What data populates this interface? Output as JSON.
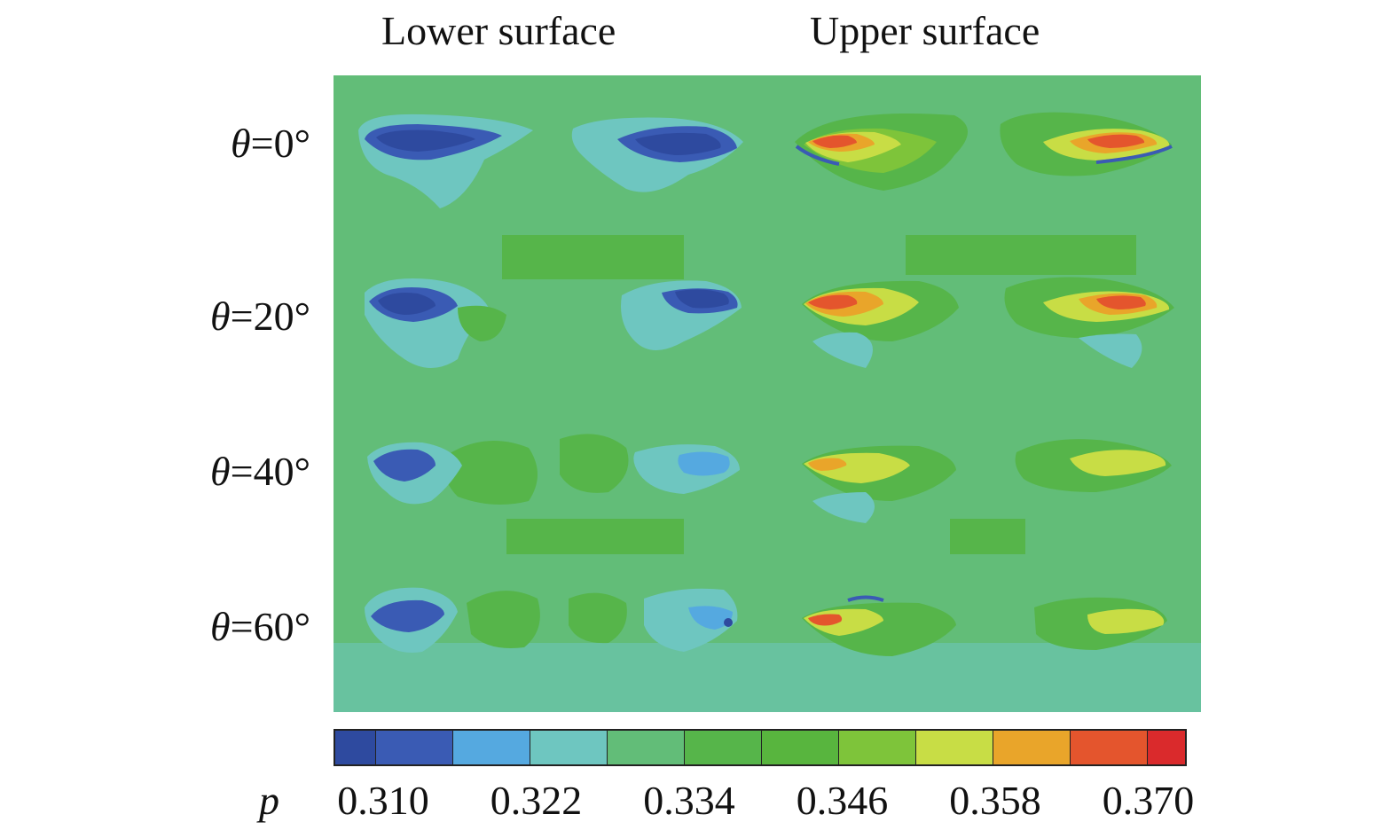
{
  "columns": [
    {
      "label": "Lower surface"
    },
    {
      "label": "Upper surface"
    }
  ],
  "rows": [
    {
      "symbol": "θ",
      "value": "=0°"
    },
    {
      "symbol": "θ",
      "value": "=20°"
    },
    {
      "symbol": "θ",
      "value": "=40°"
    },
    {
      "symbol": "θ",
      "value": "=60°"
    }
  ],
  "colorbar": {
    "variable": "p",
    "min": 0.31,
    "max": 0.37,
    "colors": [
      "#2e4a9f",
      "#3a5bb4",
      "#55a9e0",
      "#6ec6c0",
      "#62bd78",
      "#56b54a",
      "#58b53e",
      "#7ec43a",
      "#c8dd45",
      "#e9a52a",
      "#e4552d",
      "#da2a2c"
    ],
    "ticks": [
      "0.310",
      "0.322",
      "0.334",
      "0.346",
      "0.358",
      "0.370"
    ]
  },
  "background_color": "#62bd78"
}
